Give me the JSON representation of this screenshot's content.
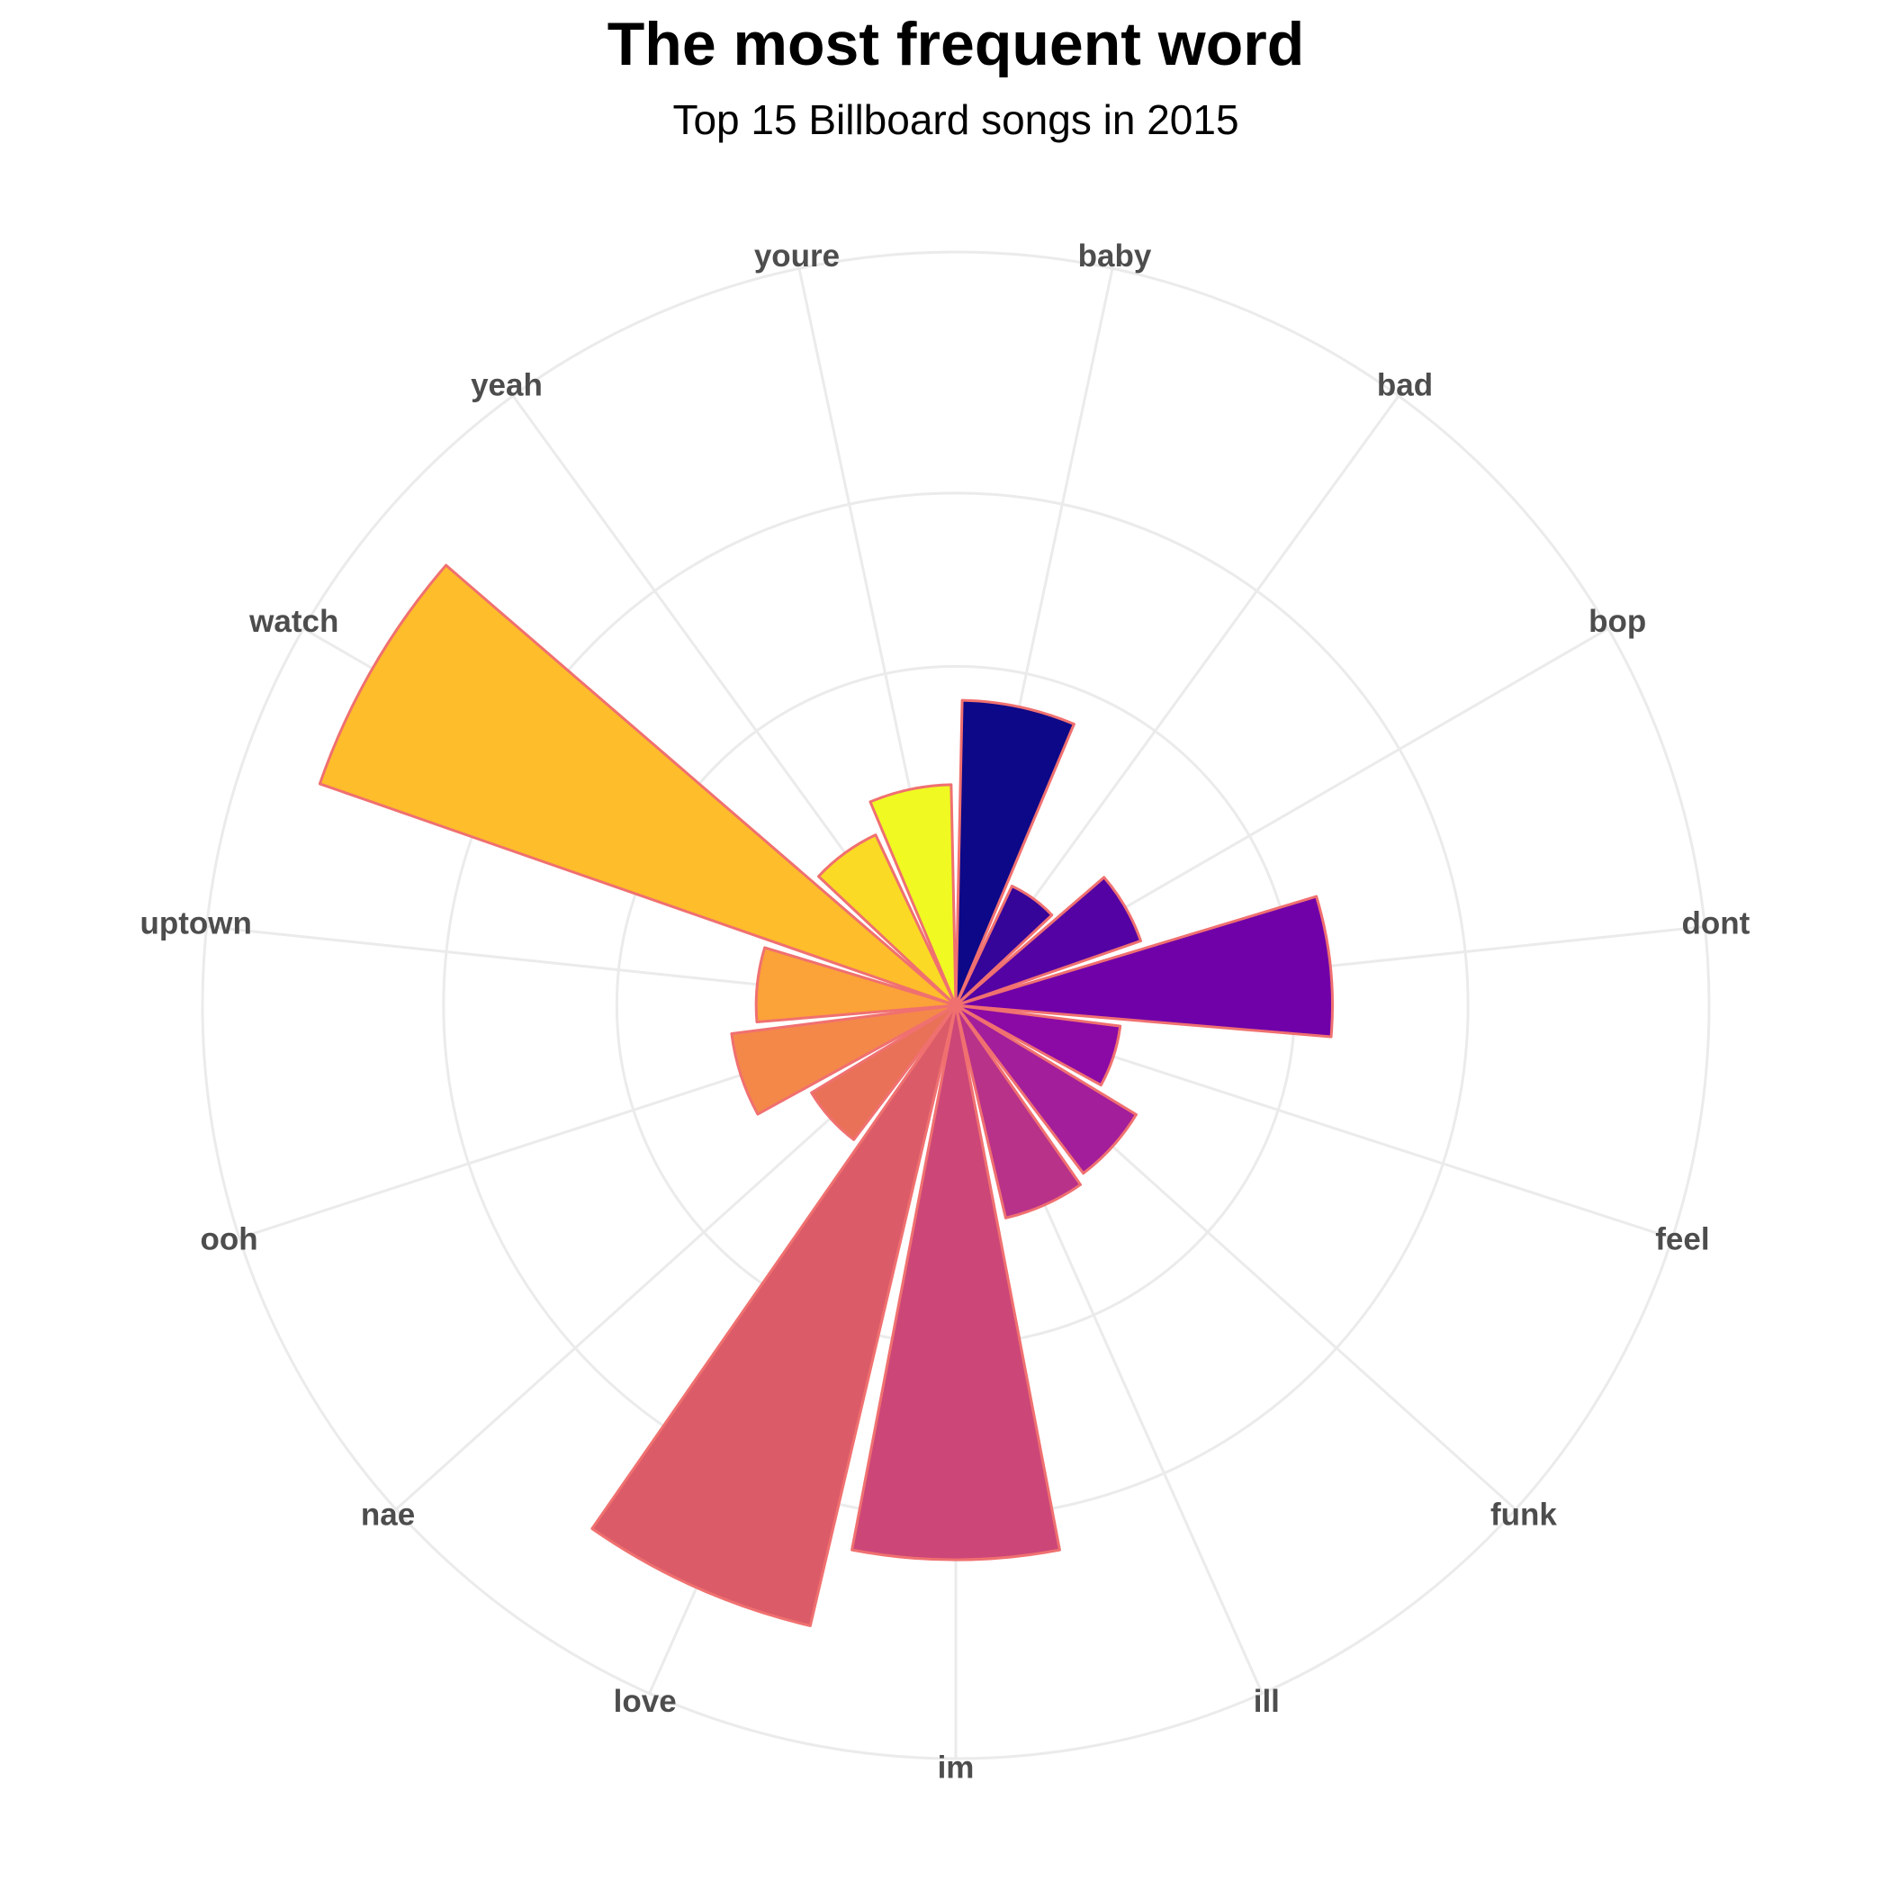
{
  "chart_data": {
    "type": "polar-bar",
    "title": "The most frequent word",
    "subtitle": "Top 15 Billboard songs in 2015",
    "categories": [
      "baby",
      "bad",
      "bop",
      "dont",
      "feel",
      "funk",
      "ill",
      "im",
      "love",
      "nae",
      "ooh",
      "uptown",
      "watch",
      "yeah",
      "youre"
    ],
    "values": [
      40.5,
      17.5,
      26,
      50,
      22,
      28,
      29,
      73.6,
      84.6,
      22.4,
      30,
      26.5,
      89.4,
      25,
      29.3
    ],
    "colors": [
      "#0d0887",
      "#350498",
      "#5402a3",
      "#7000a8",
      "#8b0aa5",
      "#a31e9a",
      "#b83289",
      "#cc4778",
      "#db5c68",
      "#e97158",
      "#f48849",
      "#fba238",
      "#febd2a",
      "#fada24",
      "#f0f921"
    ],
    "outline_color": "#f07070",
    "ylim": [
      0,
      100
    ],
    "yticks": [
      45,
      68,
      100
    ],
    "grid": true
  }
}
